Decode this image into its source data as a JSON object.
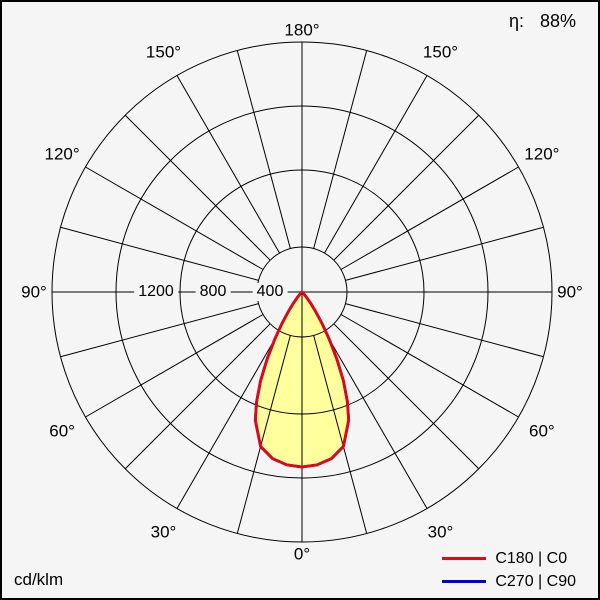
{
  "header": {
    "efficiency_label": "η:",
    "efficiency_value": "88%"
  },
  "footer": {
    "unit": "cd/klm"
  },
  "legend": [
    {
      "label": "C180 | C0",
      "color": "#e30613"
    },
    {
      "label": "C270 | C90",
      "color": "#0000dd"
    }
  ],
  "colors": {
    "grid": "#000000",
    "background": "#f5f5f5",
    "beam_fill": "#ffff9e"
  },
  "chart_data": {
    "type": "line",
    "subtype": "polar-photometric-light-distribution",
    "units": "cd/klm",
    "efficiency_percent": 88,
    "angle_tick_labels": [
      "0°",
      "30°",
      "60°",
      "90°",
      "120°",
      "150°",
      "180°"
    ],
    "radial_tick_labels": [
      "400",
      "800",
      "1200"
    ],
    "radial_max": 1200,
    "grid_spoke_step_deg": 15,
    "legend_position": "bottom-right",
    "series": [
      {
        "name": "C180 | C0",
        "color": "#e30613",
        "symmetric": true,
        "gamma_deg": [
          0,
          5,
          10,
          15,
          20,
          22.5,
          25,
          27.5,
          30,
          32.5,
          35,
          37.5,
          40,
          42.5,
          45,
          47.5,
          50
        ],
        "intensity_cd_klm": [
          840,
          833,
          812,
          768,
          655,
          570,
          470,
          362,
          260,
          180,
          112,
          66,
          34,
          16,
          7,
          2,
          0
        ]
      },
      {
        "name": "C270 | C90",
        "color": "#0000dd",
        "symmetric": true,
        "coincides_with": "C180 | C0",
        "gamma_deg": [
          0,
          5,
          10,
          15,
          20,
          22.5,
          25,
          27.5,
          30,
          32.5,
          35,
          37.5,
          40,
          42.5,
          45,
          47.5,
          50
        ],
        "intensity_cd_klm": [
          840,
          833,
          812,
          768,
          655,
          570,
          470,
          362,
          260,
          180,
          112,
          66,
          34,
          16,
          7,
          2,
          0
        ]
      }
    ]
  }
}
